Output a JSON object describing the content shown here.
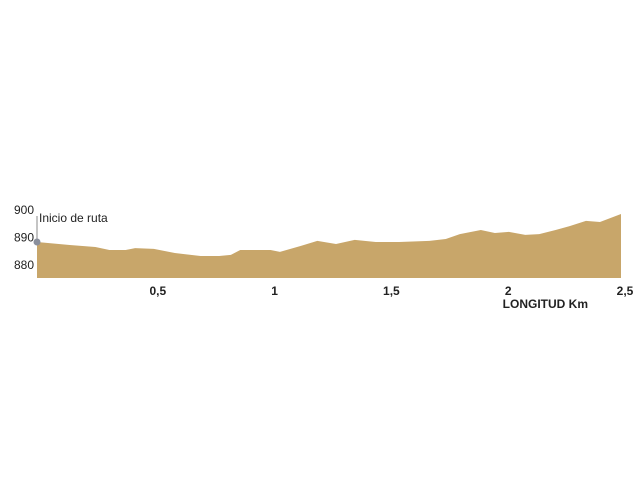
{
  "chart_data": {
    "type": "area",
    "x_axis_label": "LONGITUD Km",
    "annotation": "Inicio de ruta",
    "color": "#c8a66a",
    "x": [
      0,
      0.14,
      0.25,
      0.31,
      0.38,
      0.42,
      0.5,
      0.59,
      0.7,
      0.78,
      0.83,
      0.87,
      1.0,
      1.04,
      1.13,
      1.2,
      1.28,
      1.36,
      1.45,
      1.55,
      1.68,
      1.75,
      1.81,
      1.9,
      1.96,
      2.02,
      2.09,
      2.15,
      2.22,
      2.28,
      2.35,
      2.41,
      2.5
    ],
    "values": [
      888.7,
      887.6,
      886.9,
      885.8,
      885.8,
      886.5,
      886.2,
      884.7,
      883.6,
      883.6,
      884,
      885.8,
      885.8,
      885.1,
      887.3,
      889.1,
      888,
      889.5,
      888.7,
      888.7,
      889.1,
      889.8,
      891.6,
      893.1,
      892,
      892.4,
      891.3,
      891.6,
      893.1,
      894.5,
      896.4,
      896,
      898.9
    ],
    "xlim": [
      0,
      2.5
    ],
    "ylim": [
      875.6,
      900
    ],
    "xticks": [
      {
        "value": 0.5,
        "label": "0,5"
      },
      1,
      {
        "value": 1.5,
        "label": "1,5"
      },
      2,
      {
        "value": 2.5,
        "label": "2,5"
      }
    ],
    "yticks": [
      880,
      890,
      900
    ]
  }
}
